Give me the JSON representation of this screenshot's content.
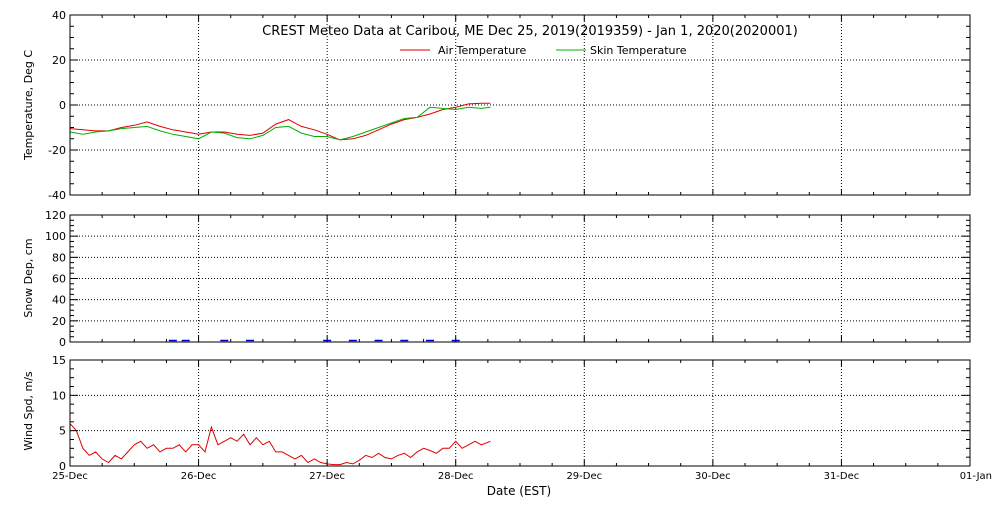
{
  "title": "CREST Meteo Data at Caribou, ME   Dec 25, 2019(2019359) - Jan  1, 2020(2020001)",
  "xlabel": "Date (EST)",
  "x_ticks": [
    "25-Dec",
    "26-Dec",
    "27-Dec",
    "28-Dec",
    "29-Dec",
    "30-Dec",
    "31-Dec",
    "01-Jan"
  ],
  "colors": {
    "air": "#e00000",
    "skin": "#00b000",
    "snow": "#0000cc",
    "wind": "#e00000",
    "axis": "#000000"
  },
  "chart_data": [
    {
      "type": "line",
      "ylabel": "Temperature, Deg C",
      "xlim": [
        0,
        7
      ],
      "ylim": [
        -40,
        40
      ],
      "yticks": [
        -40,
        -20,
        0,
        20,
        40
      ],
      "grid": true,
      "legend_placement": "top-center",
      "series": [
        {
          "name": "Air Temperature",
          "color_key": "air",
          "x": [
            0,
            0.1,
            0.2,
            0.3,
            0.4,
            0.5,
            0.6,
            0.7,
            0.8,
            0.9,
            1.0,
            1.1,
            1.2,
            1.3,
            1.4,
            1.5,
            1.6,
            1.7,
            1.8,
            1.9,
            2.0,
            2.1,
            2.2,
            2.3,
            2.4,
            2.5,
            2.6,
            2.7,
            2.8,
            2.9,
            3.0,
            3.1,
            3.2,
            3.27
          ],
          "y": [
            -10.5,
            -11,
            -11.5,
            -11.5,
            -10,
            -9,
            -7.5,
            -9.5,
            -11,
            -12,
            -13,
            -12,
            -12,
            -13,
            -13.5,
            -12.5,
            -8.5,
            -6.5,
            -9.5,
            -11,
            -13,
            -15.5,
            -15,
            -13.5,
            -11,
            -8.5,
            -6.5,
            -5.5,
            -4,
            -2,
            -1,
            0.5,
            0.8,
            0.8
          ]
        },
        {
          "name": "Skin Temperature",
          "color_key": "skin",
          "x": [
            0,
            0.1,
            0.2,
            0.3,
            0.4,
            0.5,
            0.6,
            0.7,
            0.8,
            0.9,
            1.0,
            1.1,
            1.2,
            1.3,
            1.4,
            1.5,
            1.6,
            1.7,
            1.8,
            1.9,
            2.0,
            2.1,
            2.2,
            2.3,
            2.4,
            2.5,
            2.6,
            2.7,
            2.8,
            2.9,
            3.0,
            3.1,
            3.2,
            3.27
          ],
          "y": [
            -12,
            -13,
            -12,
            -11.5,
            -10.5,
            -10,
            -9.5,
            -11.5,
            -13,
            -14,
            -15,
            -12,
            -12.5,
            -14.5,
            -15,
            -13.5,
            -10,
            -9.5,
            -12.5,
            -14,
            -14,
            -15.5,
            -14,
            -12,
            -10,
            -8,
            -6,
            -5.5,
            -1,
            -1.5,
            -2,
            -1,
            -1.5,
            -1
          ]
        }
      ]
    },
    {
      "type": "area",
      "ylabel": "Snow Dep, cm",
      "xlim": [
        0,
        7
      ],
      "ylim": [
        0,
        120
      ],
      "yticks": [
        0,
        20,
        40,
        60,
        80,
        100,
        120
      ],
      "grid": true,
      "series": [
        {
          "color_key": "snow",
          "x": [
            0.8,
            0.9,
            1.2,
            1.4,
            2.0,
            2.2,
            2.4,
            2.6,
            2.8,
            3.0
          ],
          "y": [
            0.5,
            0.8,
            0.6,
            1.0,
            0.7,
            0.8,
            0.5,
            0.6,
            1.0,
            0.5
          ]
        }
      ]
    },
    {
      "type": "line",
      "ylabel": "Wind Spd, m/s",
      "xlim": [
        0,
        7
      ],
      "ylim": [
        0,
        15
      ],
      "yticks": [
        0,
        5,
        10,
        15
      ],
      "grid": true,
      "series": [
        {
          "color_key": "wind",
          "x": [
            0,
            0.05,
            0.1,
            0.15,
            0.2,
            0.25,
            0.3,
            0.35,
            0.4,
            0.45,
            0.5,
            0.55,
            0.6,
            0.65,
            0.7,
            0.75,
            0.8,
            0.85,
            0.9,
            0.95,
            1.0,
            1.05,
            1.1,
            1.15,
            1.2,
            1.25,
            1.3,
            1.35,
            1.4,
            1.45,
            1.5,
            1.55,
            1.6,
            1.65,
            1.7,
            1.75,
            1.8,
            1.85,
            1.9,
            1.95,
            2.0,
            2.05,
            2.1,
            2.15,
            2.2,
            2.25,
            2.3,
            2.35,
            2.4,
            2.45,
            2.5,
            2.55,
            2.6,
            2.65,
            2.7,
            2.75,
            2.8,
            2.85,
            2.9,
            2.95,
            3.0,
            3.05,
            3.1,
            3.15,
            3.2,
            3.27
          ],
          "y": [
            6,
            5,
            2.5,
            1.5,
            2,
            1,
            0.5,
            1.5,
            1,
            2,
            3,
            3.5,
            2.5,
            3,
            2,
            2.5,
            2.5,
            3,
            2,
            3,
            3,
            2,
            5.5,
            3,
            3.5,
            4,
            3.5,
            4.5,
            3,
            4,
            3,
            3.5,
            2,
            2,
            1.5,
            1,
            1.5,
            0.5,
            1,
            0.5,
            0.3,
            0.2,
            0.2,
            0.5,
            0.3,
            0.8,
            1.5,
            1.2,
            1.8,
            1.2,
            1,
            1.5,
            1.8,
            1.2,
            2,
            2.5,
            2.2,
            1.8,
            2.5,
            2.5,
            3.5,
            2.5,
            3,
            3.5,
            3,
            3.5
          ]
        }
      ]
    }
  ]
}
